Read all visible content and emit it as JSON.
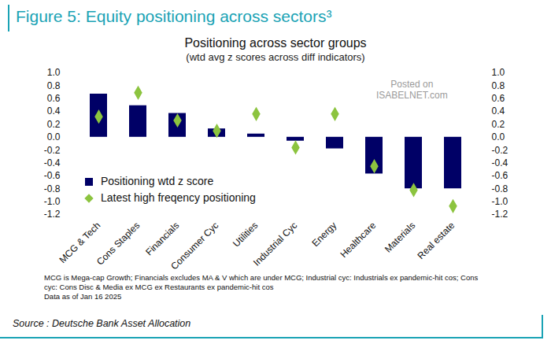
{
  "chart_data": {
    "type": "bar",
    "title": "Figure 5: Equity positioning across sectors³",
    "chart_title": "Positioning across sector groups",
    "subtitle": "(wtd avg z scores across diff indicators)",
    "categories": [
      "MCG & Tech",
      "Cons Staples",
      "Financials",
      "Consumer Cyc",
      "Utilities",
      "Industrial Cyc",
      "Energy",
      "Healthcare",
      "Materials",
      "Real estate"
    ],
    "series": [
      {
        "name": "Positioning wtd z score",
        "type": "bar",
        "color": "#000066",
        "values": [
          0.67,
          0.49,
          0.37,
          0.13,
          0.05,
          -0.06,
          -0.18,
          -0.57,
          -0.8,
          -0.8
        ]
      },
      {
        "name": "Latest high freqency positioning",
        "type": "scatter",
        "marker": "diamond",
        "color": "#8cc43f",
        "values": [
          0.32,
          0.69,
          0.26,
          0.1,
          0.36,
          -0.16,
          0.36,
          -0.45,
          -0.82,
          -1.07
        ]
      }
    ],
    "ylim": [
      -1.2,
      1.0
    ],
    "yticks": [
      -1.2,
      {
        "value": -1.0,
        "label": "-1.0"
      },
      -0.8,
      -0.6,
      -0.4,
      -0.2,
      {
        "value": 0,
        "label": "0.0"
      },
      0.2,
      0.4,
      0.6,
      0.8,
      {
        "value": 1.0,
        "label": "1.0"
      }
    ],
    "y2lim": [
      -1.2,
      1.0
    ],
    "y2ticks": [
      -1.2,
      {
        "value": -1.0,
        "label": "-1.0"
      },
      -0.8,
      -0.6,
      -0.4,
      -0.2,
      {
        "value": 0,
        "label": "0.0"
      },
      0.2,
      0.4,
      0.6,
      0.8,
      {
        "value": 1.0,
        "label": "1.0"
      }
    ],
    "grid": false,
    "legend": "lower left",
    "watermark": [
      "Posted on",
      "ISABELNET.com"
    ],
    "notes": [
      "MCG is Mega-cap Growth; Financials excludes MA & V which are under MCG;  Industrial cyc: Industrials ex pandemic-hit cos; Cons cyc: Cons Disc & Media ex MCG ex Restaurants ex pandemic-hit cos",
      "Data as of Jan 16 2025"
    ],
    "source": "Source : Deutsche Bank Asset Allocation"
  }
}
